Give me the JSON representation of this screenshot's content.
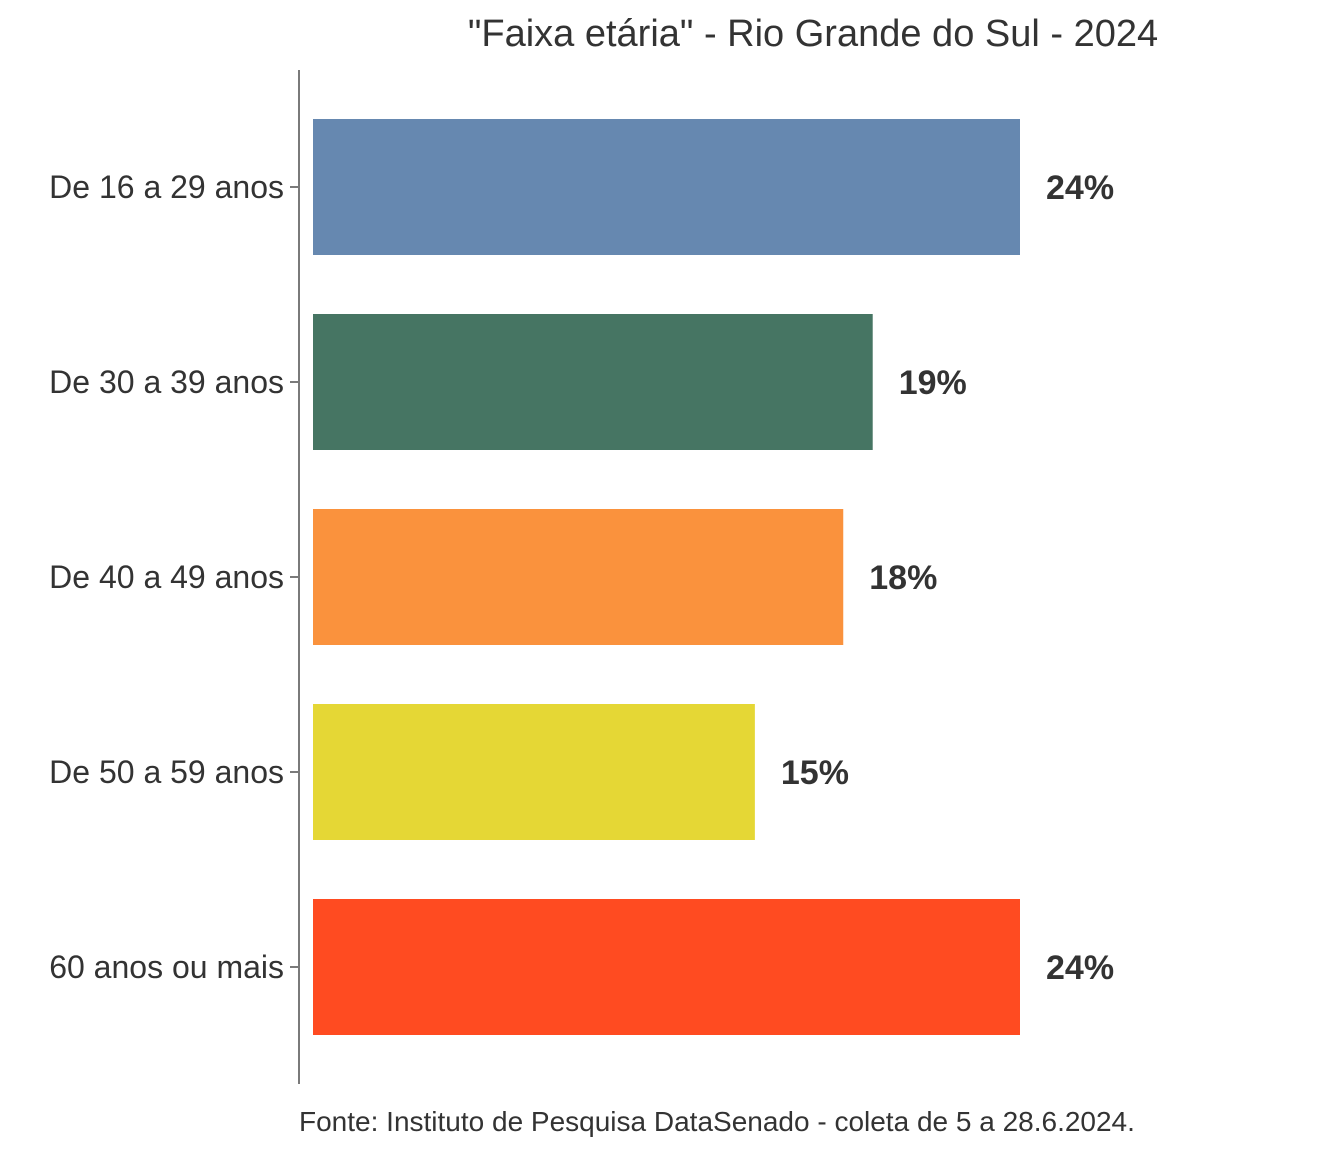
{
  "chart_data": {
    "type": "bar",
    "orientation": "horizontal",
    "title": "\"Faixa etária\" - Rio Grande do Sul - 2024",
    "caption": "Fonte: Instituto de Pesquisa DataSenado - coleta de 5 a 28.6.2024.",
    "categories": [
      "De 16 a 29 anos",
      "De 30 a 39 anos",
      "De 40 a 49 anos",
      "De 50 a 59 anos",
      "60 anos ou mais"
    ],
    "values": [
      24,
      19,
      18,
      15,
      24
    ],
    "value_labels": [
      "24%",
      "19%",
      "18%",
      "15%",
      "24%"
    ],
    "colors": [
      "#6688B0",
      "#467563",
      "#FA923D",
      "#E5D735",
      "#FF4B21"
    ],
    "xlim": [
      0,
      34
    ],
    "grid": false,
    "xlabel": "",
    "ylabel": ""
  }
}
